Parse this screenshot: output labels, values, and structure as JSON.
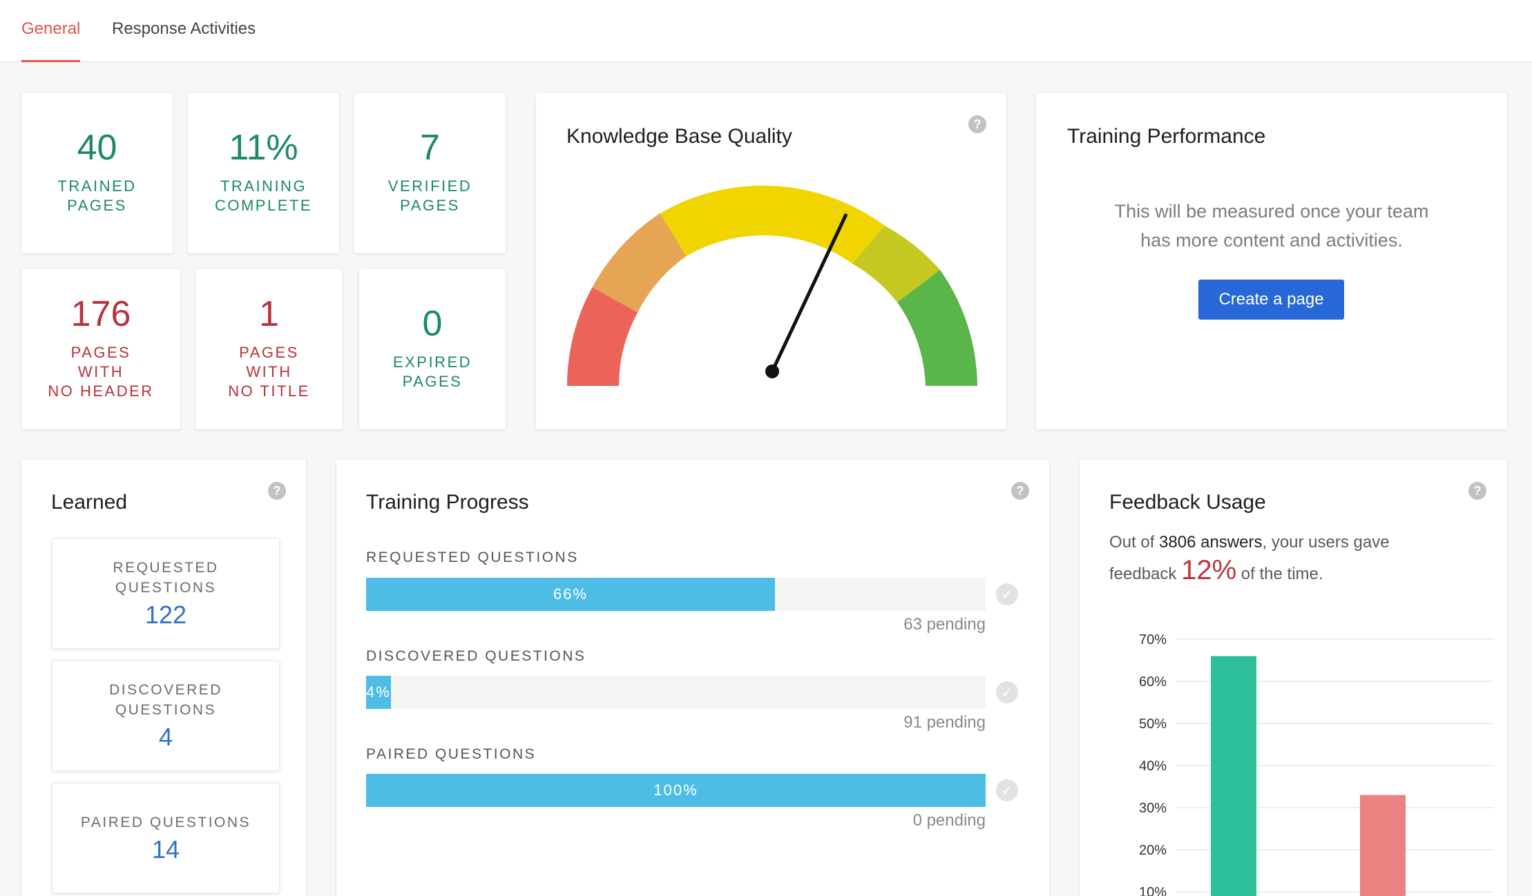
{
  "tabs": [
    {
      "label": "General",
      "active": true
    },
    {
      "label": "Response Activities",
      "active": false
    }
  ],
  "stats": {
    "trained_pages": {
      "value": "40",
      "label1": "TRAINED",
      "label2": "PAGES"
    },
    "training_complete": {
      "value": "11%",
      "label1": "TRAINING",
      "label2": "COMPLETE"
    },
    "verified_pages": {
      "value": "7",
      "label1": "VERIFIED",
      "label2": "PAGES"
    },
    "no_header": {
      "value": "176",
      "label1": "PAGES",
      "label2": "WITH",
      "label3": "NO HEADER"
    },
    "no_title": {
      "value": "1",
      "label1": "PAGES",
      "label2": "WITH",
      "label3": "NO TITLE"
    },
    "expired_pages": {
      "value": "0",
      "label1": "EXPIRED",
      "label2": "PAGES"
    }
  },
  "kb_quality": {
    "title": "Knowledge Base Quality",
    "help_icon": "question-circle-icon",
    "needle_percent": 64,
    "colors": {
      "red": "#ec6459",
      "orange": "#e6a554",
      "yellow": "#f1d500",
      "olive": "#c4c821",
      "green": "#5ab54a"
    }
  },
  "training_performance": {
    "title": "Training Performance",
    "message_line1": "This will be measured once your team",
    "message_line2": "has more content and activities.",
    "button_label": "Create a page"
  },
  "learned": {
    "title": "Learned",
    "help_icon": "question-circle-icon",
    "items": [
      {
        "label1": "REQUESTED",
        "label2": "QUESTIONS",
        "value": "122"
      },
      {
        "label1": "DISCOVERED",
        "label2": "QUESTIONS",
        "value": "4"
      },
      {
        "label1": "PAIRED QUESTIONS",
        "value": "14"
      }
    ]
  },
  "training_progress": {
    "title": "Training Progress",
    "help_icon": "question-circle-icon",
    "rows": [
      {
        "label": "REQUESTED QUESTIONS",
        "percent": 66,
        "percent_label": "66%",
        "pending": "63 pending"
      },
      {
        "label": "DISCOVERED QUESTIONS",
        "percent": 4,
        "percent_label": "4%",
        "pending": "91 pending"
      },
      {
        "label": "PAIRED QUESTIONS",
        "percent": 100,
        "percent_label": "100%",
        "pending": "0 pending"
      }
    ],
    "check_icon": "check-circle-icon"
  },
  "feedback": {
    "title": "Feedback Usage",
    "help_icon": "question-circle-icon",
    "text_prefix": "Out of ",
    "answers": "3806 answers",
    "text_mid": ", your users gave",
    "text_line2_prefix": "feedback ",
    "percent": "12%",
    "text_suffix": " of the time."
  },
  "chart_data": {
    "type": "bar",
    "categories": [
      "",
      ""
    ],
    "values": [
      66,
      33
    ],
    "colors": [
      "#2ec09b",
      "#ea8282"
    ],
    "ylim": [
      0,
      70
    ],
    "yticks": [
      "70%",
      "60%",
      "50%",
      "40%",
      "30%",
      "20%",
      "10%"
    ],
    "ytick_values": [
      70,
      60,
      50,
      40,
      30,
      20,
      10
    ],
    "grid": true
  }
}
